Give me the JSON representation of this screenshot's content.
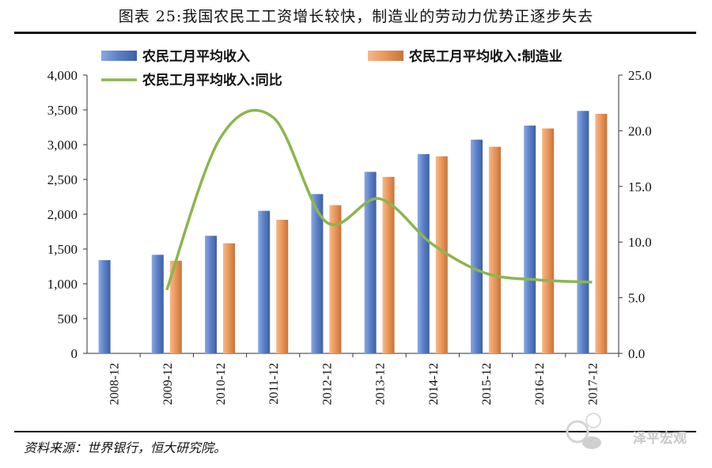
{
  "title": "图表 25:我国农民工工资增长较快，制造业的劳动力优势正逐步失去",
  "source": "资料来源：世界银行，恒大研究院。",
  "watermark": "泽平宏观",
  "colors": {
    "bar1": "#5b7fc6",
    "bar2": "#e99558",
    "line": "#8db54e"
  },
  "chart_data": {
    "type": "bar",
    "categories": [
      "2008-12",
      "2009-12",
      "2010-12",
      "2011-12",
      "2012-12",
      "2013-12",
      "2014-12",
      "2015-12",
      "2016-12",
      "2017-12"
    ],
    "series": [
      {
        "name": "农民工月平均收入",
        "axis": "left",
        "values": [
          1340,
          1417,
          1690,
          2049,
          2290,
          2609,
          2864,
          3072,
          3275,
          3485
        ]
      },
      {
        "name": "农民工月平均收入:制造业",
        "axis": "left",
        "values": [
          null,
          1331,
          1582,
          1920,
          2130,
          2537,
          2832,
          2970,
          3233,
          3444
        ]
      },
      {
        "name": "农民工月平均收入:同比",
        "axis": "right",
        "type": "line",
        "values": [
          null,
          5.7,
          19.3,
          21.2,
          11.8,
          13.9,
          9.8,
          7.2,
          6.6,
          6.4
        ]
      }
    ],
    "left_axis": {
      "ylim": [
        0,
        4000
      ],
      "ticks": [
        "0",
        "500",
        "1,000",
        "1,500",
        "2,000",
        "2,500",
        "3,000",
        "3,500",
        "4,000"
      ]
    },
    "right_axis": {
      "ylim": [
        0,
        25
      ],
      "ticks": [
        "0.0",
        "5.0",
        "10.0",
        "15.0",
        "20.0",
        "25.0"
      ]
    },
    "legend": "top",
    "grid": false
  }
}
